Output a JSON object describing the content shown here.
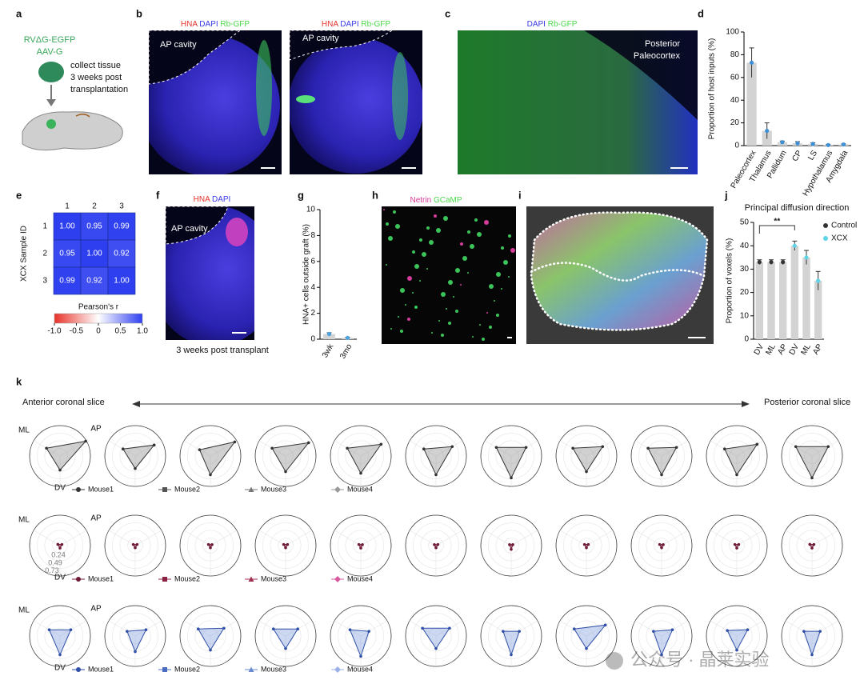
{
  "panels": {
    "a": {
      "label": "a",
      "vectors": [
        "RVΔG-EGFP",
        "AAV-G"
      ],
      "note": [
        "collect tissue",
        "3 weeks post",
        "transplantation"
      ]
    },
    "b": {
      "label": "b",
      "images": [
        {
          "stains": [
            {
              "text": "HNA",
              "color": "#e8322a"
            },
            {
              "text": "DAPI",
              "color": "#3a3ae8"
            },
            {
              "text": "Rb-GFP",
              "color": "#4cd94c"
            }
          ],
          "annotation": "AP cavity"
        },
        {
          "stains": [
            {
              "text": "HNA",
              "color": "#e8322a"
            },
            {
              "text": "DAPI",
              "color": "#3a3ae8"
            },
            {
              "text": "Rb-GFP",
              "color": "#4cd94c"
            }
          ],
          "annotation": "AP cavity"
        }
      ]
    },
    "c": {
      "label": "c",
      "stains": [
        {
          "text": "DAPI",
          "color": "#3a3ae8"
        },
        {
          "text": "Rb-GFP",
          "color": "#4cd94c"
        }
      ],
      "annotation": [
        "Posterior",
        "Paleocortex"
      ]
    },
    "d": {
      "label": "d",
      "type": "bar",
      "ylabel": "Proportion of host inputs (%)",
      "categories": [
        "Paleocortex",
        "Thalamus",
        "Pallidum",
        "CP",
        "LS",
        "Hypothalamus",
        "Amygdala"
      ],
      "values": [
        73,
        13,
        3,
        2,
        1.5,
        0.5,
        1
      ],
      "errors": [
        13,
        7,
        1,
        1.5,
        1,
        0.5,
        0.5
      ],
      "color": "#3d8fd6",
      "bar_color": "#d3d3d3",
      "ylim": [
        0,
        100
      ],
      "yticks": [
        0,
        20,
        40,
        60,
        80,
        100
      ]
    },
    "e": {
      "label": "e",
      "type": "heatmap",
      "columns": [
        "1",
        "2",
        "3"
      ],
      "rows": [
        "1",
        "2",
        "3"
      ],
      "ylabel": "XCX Sample ID",
      "values": [
        [
          1.0,
          0.95,
          0.99
        ],
        [
          0.95,
          1.0,
          0.92
        ],
        [
          0.99,
          0.92,
          1.0
        ]
      ],
      "value_labels": [
        [
          "1.00",
          "0.95",
          "0.99"
        ],
        [
          "0.95",
          "1.00",
          "0.92"
        ],
        [
          "0.99",
          "0.92",
          "1.00"
        ]
      ],
      "colorbar_label": "Pearson's r",
      "clim": [
        -1,
        1
      ],
      "cticks": [
        {
          "value": -1,
          "label": "-1.0"
        },
        -0.5,
        0,
        0.5,
        {
          "value": 1,
          "label": "1.0"
        }
      ]
    },
    "f": {
      "label": "f",
      "stains": [
        {
          "text": "HNA",
          "color": "#e8322a"
        },
        {
          "text": "DAPI",
          "color": "#3a3ae8"
        }
      ],
      "annotation": "AP cavity",
      "caption": "3 weeks post transplant"
    },
    "g": {
      "label": "g",
      "type": "bar",
      "ylabel": "HNA+ cells outside graft (%)",
      "categories": [
        "3wk",
        "3mo"
      ],
      "values": [
        0.4,
        0.1
      ],
      "errors": [
        0.1,
        0.05
      ],
      "color": "#4aa3df",
      "bar_color": "#d3d3d3",
      "ylim": [
        0,
        10
      ],
      "yticks": [
        0,
        2,
        4,
        6,
        8,
        10
      ]
    },
    "h": {
      "label": "h",
      "stains": [
        {
          "text": "Netrin",
          "color": "#d63a9a"
        },
        {
          "text": "GCaMP",
          "color": "#4cd94c"
        }
      ]
    },
    "i": {
      "label": "i"
    },
    "j": {
      "label": "j",
      "type": "bar",
      "title": "Principal diffusion direction",
      "ylabel": "Proportion of voxels (%)",
      "categories": [
        "DV",
        "ML",
        "AP",
        "DV",
        "ML",
        "AP"
      ],
      "bar_color": "#d3d3d3",
      "series": [
        {
          "name": "Control",
          "color": "#333333",
          "values": [
            33,
            33,
            33,
            null,
            null,
            null
          ],
          "errors": [
            1,
            1,
            1,
            null,
            null,
            null
          ]
        },
        {
          "name": "XCX",
          "color": "#5fd3e8",
          "values": [
            null,
            null,
            null,
            40,
            35,
            25
          ],
          "errors": [
            null,
            null,
            null,
            2,
            3,
            4
          ]
        }
      ],
      "annotation": "**",
      "ylim": [
        0,
        50
      ],
      "yticks": [
        0,
        10,
        20,
        30,
        40,
        50
      ]
    },
    "k": {
      "label": "k",
      "type": "radar",
      "arrow_left": "Anterior coronal slice",
      "arrow_right": "Posterior coronal slice",
      "axes": [
        "ML",
        "AP",
        "DV"
      ],
      "rticks": [
        0.24,
        0.49,
        0.73
      ],
      "rows": [
        {
          "fill": "#9a9a9a",
          "series": [
            {
              "name": "Mouse1",
              "color": "#333333",
              "marker": "circle"
            },
            {
              "name": "Mouse2",
              "color": "#555555",
              "marker": "square"
            },
            {
              "name": "Mouse3",
              "color": "#777777",
              "marker": "triangle"
            },
            {
              "name": "Mouse4",
              "color": "#999999",
              "marker": "diamond"
            }
          ],
          "slices": [
            [
              0.5,
              0.95,
              0.45
            ],
            [
              0.45,
              0.7,
              0.4
            ],
            [
              0.4,
              0.9,
              0.6
            ],
            [
              0.5,
              0.85,
              0.5
            ],
            [
              0.5,
              0.75,
              0.55
            ],
            [
              0.45,
              0.6,
              0.6
            ],
            [
              0.55,
              0.55,
              0.7
            ],
            [
              0.5,
              0.6,
              0.5
            ],
            [
              0.5,
              0.55,
              0.6
            ],
            [
              0.45,
              0.75,
              0.6
            ],
            [
              0.6,
              0.6,
              0.7
            ]
          ]
        },
        {
          "fill": "#7a1f3d",
          "series": [
            {
              "name": "Mouse1",
              "color": "#6e1a35",
              "marker": "circle"
            },
            {
              "name": "Mouse2",
              "color": "#8b2040",
              "marker": "square"
            },
            {
              "name": "Mouse3",
              "color": "#a03050",
              "marker": "triangle"
            },
            {
              "name": "Mouse4",
              "color": "#d85aa0",
              "marker": "diamond"
            }
          ],
          "slices": [
            [
              0.08,
              0.07,
              0.08
            ],
            [
              0.07,
              0.07,
              0.07
            ],
            [
              0.07,
              0.06,
              0.07
            ],
            [
              0.07,
              0.07,
              0.07
            ],
            [
              0.07,
              0.06,
              0.08
            ],
            [
              0.06,
              0.07,
              0.07
            ],
            [
              0.06,
              0.06,
              0.12
            ],
            [
              0.07,
              0.07,
              0.07
            ],
            [
              0.07,
              0.06,
              0.07
            ],
            [
              0.07,
              0.07,
              0.08
            ],
            [
              0.08,
              0.07,
              0.08
            ]
          ]
        },
        {
          "fill": "#8fa8e0",
          "series": [
            {
              "name": "Mouse1",
              "color": "#2f4fa8",
              "marker": "circle"
            },
            {
              "name": "Mouse2",
              "color": "#4a6cc0",
              "marker": "square"
            },
            {
              "name": "Mouse3",
              "color": "#6a8ad0",
              "marker": "triangle"
            },
            {
              "name": "Mouse4",
              "color": "#9ab0e8",
              "marker": "diamond"
            }
          ],
          "slices": [
            [
              0.4,
              0.4,
              0.6
            ],
            [
              0.3,
              0.4,
              0.5
            ],
            [
              0.45,
              0.5,
              0.45
            ],
            [
              0.45,
              0.45,
              0.4
            ],
            [
              0.4,
              0.3,
              0.65
            ],
            [
              0.5,
              0.5,
              0.4
            ],
            [
              0.3,
              0.3,
              0.6
            ],
            [
              0.45,
              0.7,
              0.4
            ],
            [
              0.3,
              0.4,
              0.6
            ],
            [
              0.35,
              0.4,
              0.45
            ],
            [
              0.3,
              0.3,
              0.6
            ]
          ]
        }
      ]
    }
  },
  "watermark": "公众号 · 晶莱实验"
}
